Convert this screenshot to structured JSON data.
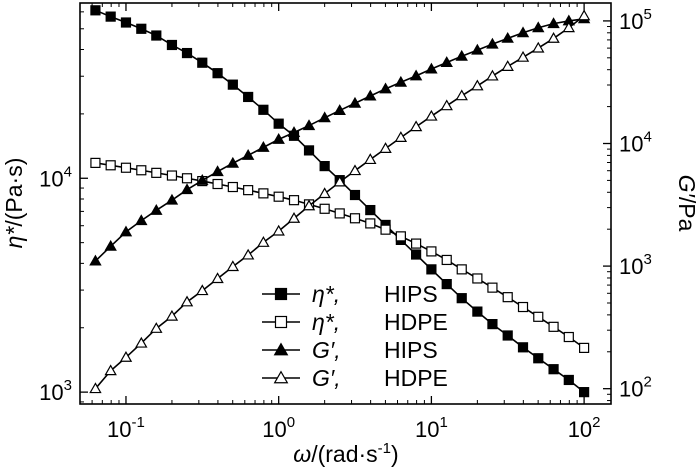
{
  "chart_data": {
    "type": "line",
    "x_scale": "log",
    "y_scale": "log",
    "y2_scale": "log",
    "xlim": [
      0.05,
      150
    ],
    "ylim": [
      880,
      66000
    ],
    "y2lim": [
      75,
      140000
    ],
    "xlabel_main": "ω",
    "xlabel_units": "/(rad·s",
    "xlabel_exp": "-1",
    "xlabel_close": ")",
    "ylabel_main": "η*",
    "ylabel_units": "/(Pa·s)",
    "y2label_main": "G′",
    "y2label_units": "/Pa",
    "x_ticks": [
      {
        "base": "10",
        "exp": "-1",
        "value": 0.1
      },
      {
        "base": "10",
        "exp": "0",
        "value": 1
      },
      {
        "base": "10",
        "exp": "1",
        "value": 10
      },
      {
        "base": "10",
        "exp": "2",
        "value": 100
      }
    ],
    "y_ticks": [
      {
        "base": "10",
        "exp": "3",
        "value": 1000
      },
      {
        "base": "10",
        "exp": "4",
        "value": 10000
      }
    ],
    "y2_ticks": [
      {
        "base": "10",
        "exp": "2",
        "value": 100
      },
      {
        "base": "10",
        "exp": "3",
        "value": 1000
      },
      {
        "base": "10",
        "exp": "4",
        "value": 10000
      },
      {
        "base": "10",
        "exp": "5",
        "value": 100000
      }
    ],
    "x": [
      0.0631,
      0.0794,
      0.1,
      0.126,
      0.158,
      0.2,
      0.251,
      0.316,
      0.398,
      0.501,
      0.631,
      0.794,
      1.0,
      1.26,
      1.58,
      2.0,
      2.51,
      3.16,
      3.98,
      5.01,
      6.31,
      7.94,
      10.0,
      12.6,
      15.8,
      20.0,
      25.1,
      31.6,
      39.8,
      50.1,
      63.1,
      79.4,
      100.0
    ],
    "series": [
      {
        "name": "η*,",
        "material": "HIPS",
        "axis": "left",
        "marker": "square-filled",
        "values": [
          61000,
          57000,
          53500,
          50000,
          46500,
          42000,
          38500,
          34700,
          31000,
          27400,
          24000,
          20900,
          18000,
          15800,
          13500,
          11400,
          9800,
          8350,
          7100,
          6050,
          5150,
          4400,
          3750,
          3200,
          2750,
          2380,
          2080,
          1840,
          1620,
          1440,
          1280,
          1140,
          1000
        ]
      },
      {
        "name": "η*,",
        "material": "HDPE",
        "axis": "left",
        "marker": "square-open",
        "values": [
          11800,
          11500,
          11200,
          10900,
          10600,
          10300,
          10000,
          9700,
          9400,
          9100,
          8800,
          8500,
          8200,
          7900,
          7550,
          7200,
          6850,
          6500,
          6150,
          5750,
          5350,
          4950,
          4550,
          4150,
          3750,
          3400,
          3080,
          2780,
          2500,
          2250,
          2020,
          1810,
          1610
        ]
      },
      {
        "name": "G′,",
        "material": "HIPS",
        "axis": "right",
        "marker": "triangle-filled",
        "values": [
          1100,
          1450,
          1900,
          2350,
          2850,
          3450,
          4200,
          5000,
          5900,
          6900,
          8000,
          9300,
          10800,
          12300,
          14000,
          16200,
          18600,
          21300,
          24400,
          27900,
          31600,
          35600,
          40500,
          45800,
          51500,
          57800,
          64700,
          72100,
          80000,
          88000,
          95000,
          100000,
          104000
        ]
      },
      {
        "name": "G′,",
        "material": "HDPE",
        "axis": "right",
        "marker": "triangle-open",
        "values": [
          100,
          140,
          180,
          235,
          310,
          390,
          510,
          630,
          790,
          990,
          1230,
          1560,
          1930,
          2450,
          3100,
          3900,
          4850,
          6000,
          7400,
          9100,
          11200,
          13700,
          16700,
          20300,
          24500,
          29500,
          35500,
          42500,
          50500,
          60000,
          72000,
          88000,
          110000
        ]
      }
    ],
    "legend_position": "bottom-right-inside",
    "grid": false
  }
}
